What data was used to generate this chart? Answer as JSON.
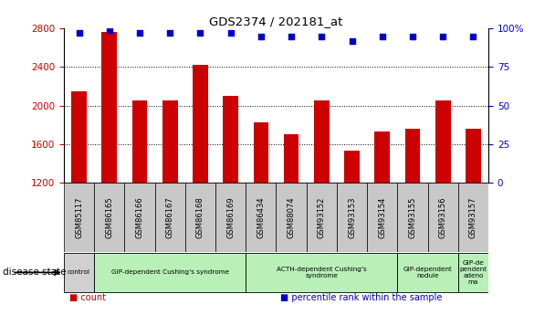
{
  "title": "GDS2374 / 202181_at",
  "samples": [
    "GSM85117",
    "GSM86165",
    "GSM86166",
    "GSM86167",
    "GSM86168",
    "GSM86169",
    "GSM86434",
    "GSM88074",
    "GSM93152",
    "GSM93153",
    "GSM93154",
    "GSM93155",
    "GSM93156",
    "GSM93157"
  ],
  "counts": [
    2150,
    2760,
    2050,
    2050,
    2420,
    2100,
    1830,
    1700,
    2050,
    1530,
    1730,
    1760,
    2050,
    1760
  ],
  "percentiles": [
    97,
    99,
    97,
    97,
    97,
    97,
    95,
    95,
    95,
    92,
    95,
    95,
    95,
    95
  ],
  "ylim_left": [
    1200,
    2800
  ],
  "ylim_right": [
    0,
    100
  ],
  "yticks_left": [
    1200,
    1600,
    2000,
    2400,
    2800
  ],
  "yticks_right": [
    0,
    25,
    50,
    75,
    100
  ],
  "ytick_labels_right": [
    "0",
    "25",
    "50",
    "75",
    "100%"
  ],
  "bar_color": "#cc0000",
  "dot_color": "#0000cc",
  "bar_width": 0.5,
  "tick_area_color": "#c8c8c8",
  "group_defs": [
    {
      "label": "control",
      "start": 0,
      "end": 1,
      "color": "#d0d0d0"
    },
    {
      "label": "GIP-dependent Cushing's syndrome",
      "start": 1,
      "end": 6,
      "color": "#b8f0b8"
    },
    {
      "label": "ACTH-dependent Cushing's\nsyndrome",
      "start": 6,
      "end": 11,
      "color": "#b8f0b8"
    },
    {
      "label": "GIP-dependent\nnodule",
      "start": 11,
      "end": 13,
      "color": "#b8f0b8"
    },
    {
      "label": "GIP-de\npendent\nadeno\nma",
      "start": 13,
      "end": 14,
      "color": "#b8f0b8"
    }
  ],
  "bg_color": "#ffffff",
  "legend_items": [
    {
      "label": "count",
      "color": "#cc0000"
    },
    {
      "label": "percentile rank within the sample",
      "color": "#0000cc"
    }
  ]
}
